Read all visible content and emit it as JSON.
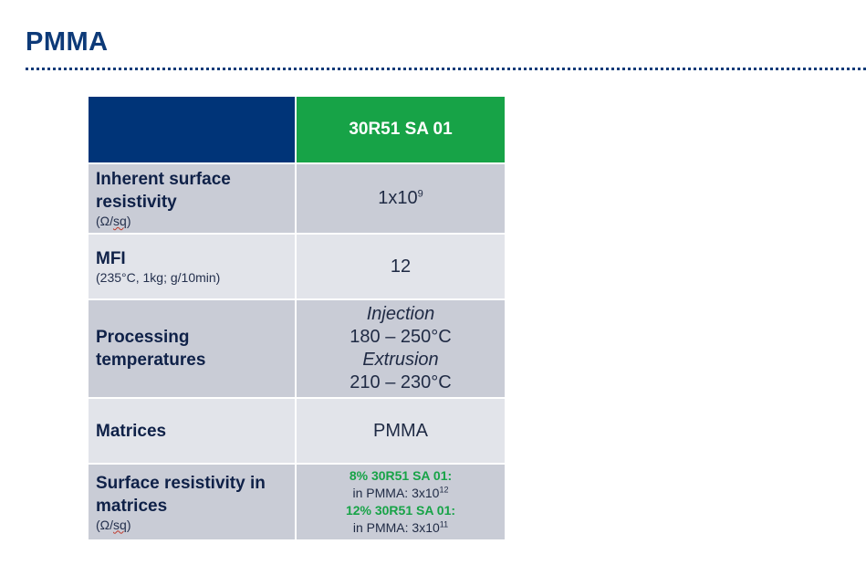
{
  "page": {
    "title": "PMMA"
  },
  "table": {
    "product_header": "30R51 SA 01",
    "rows": [
      {
        "label": "Inherent surface resistivity",
        "unit_prefix": "(Ω/",
        "unit_sq": "sq",
        "unit_suffix": ")",
        "value_base": "1x10",
        "value_exp": "9"
      },
      {
        "label": "MFI",
        "unit": "(235°C, 1kg; g/10min)",
        "value": "12"
      },
      {
        "label_line1": "Processing",
        "label_line2": "temperatures",
        "injection_label": "Injection",
        "injection_range": "180 – 250°C",
        "extrusion_label": "Extrusion",
        "extrusion_range": "210 – 230°C"
      },
      {
        "label": "Matrices",
        "value": "PMMA"
      },
      {
        "label": "Surface resistivity in matrices",
        "unit_prefix": "(Ω/",
        "unit_sq": "sq",
        "unit_suffix": ")",
        "line1_green": "8% 30R51 SA 01:",
        "line2_base": "in PMMA: 3x10",
        "line2_exp": "12",
        "line3_green": "12% 30R51 SA 01:",
        "line4_base": "in PMMA: 3x10",
        "line4_exp": "11"
      }
    ]
  },
  "colors": {
    "title_blue": "#0d3a78",
    "header_navy": "#003478",
    "header_green": "#17a347",
    "row_dark": "#c9ccd6",
    "row_light": "#e2e4ea"
  }
}
